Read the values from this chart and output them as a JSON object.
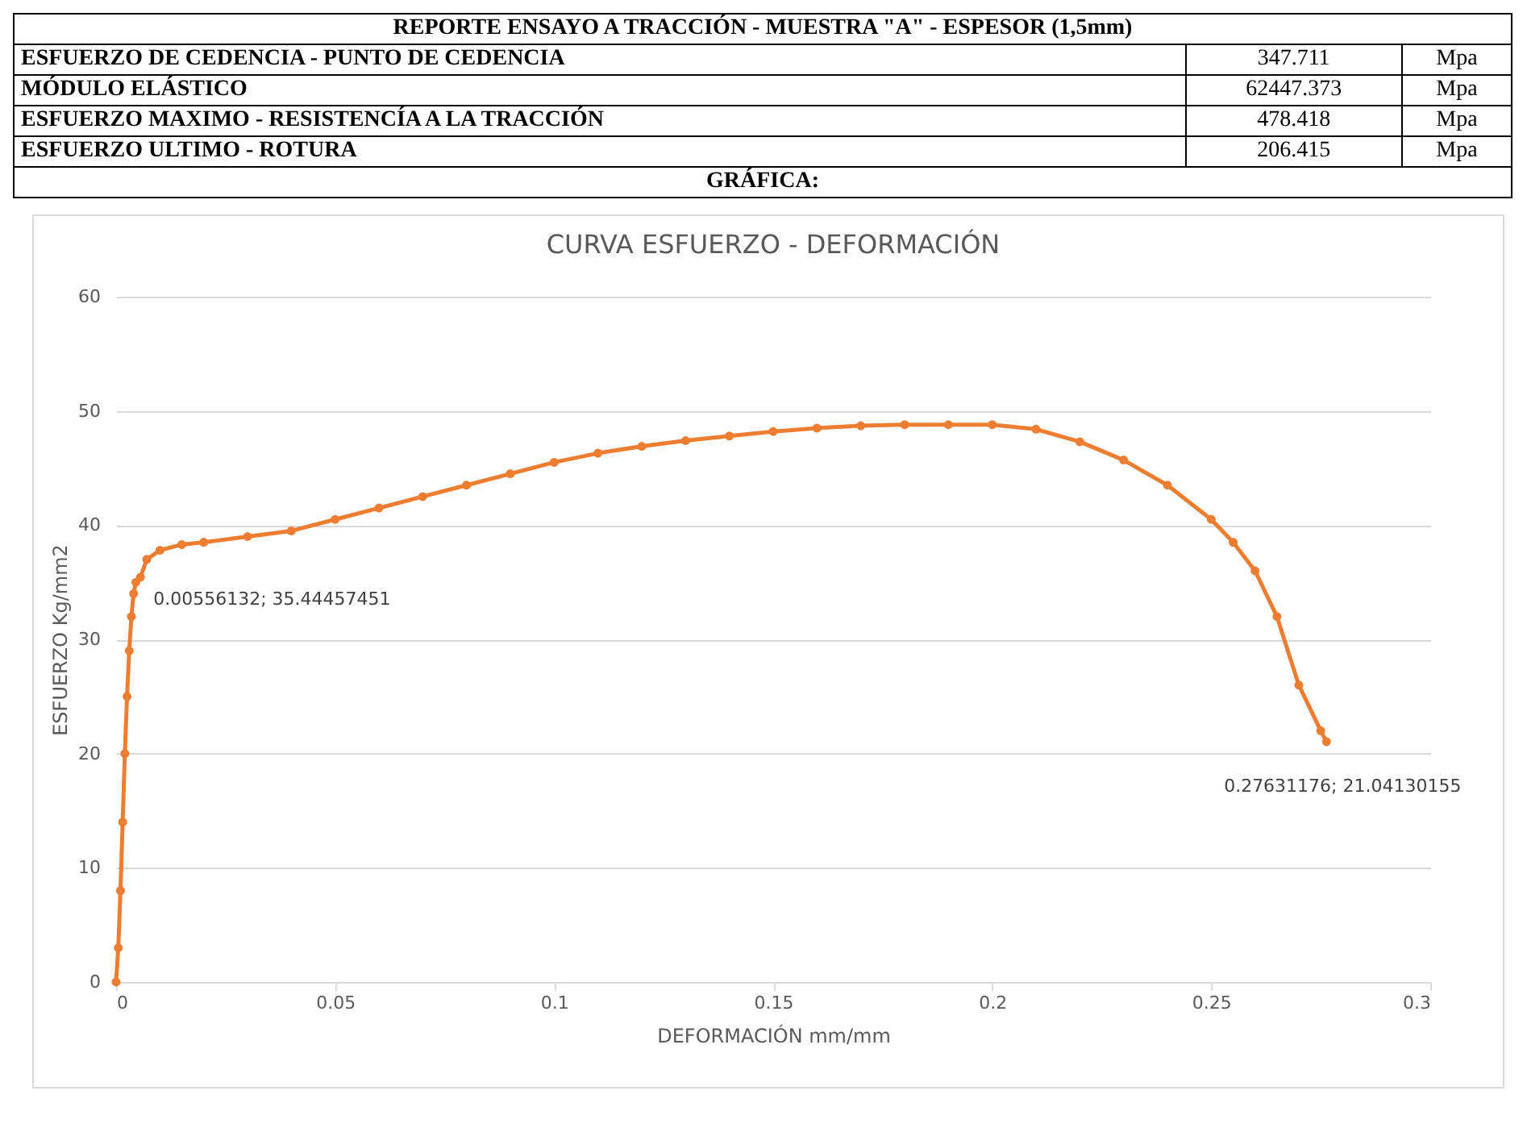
{
  "chart_data": [
    {
      "type": "other",
      "title": "REPORTE ENSAYO A TRACCIÓN - MUESTRA \"A\" - ESPESOR (1,5mm)",
      "categories": [
        "ESFUERZO DE CEDENCIA - PUNTO DE CEDENCIA",
        "MÓDULO ELÁSTICO",
        "ESFUERZO MAXIMO - RESISTENCÍA A LA TRACCIÓN",
        "ESFUERZO ULTIMO - ROTURA"
      ],
      "values": [
        347.711,
        62447.373,
        478.418,
        206.415
      ],
      "data_labels": true,
      "annotations": [
        "Mpa",
        "Mpa",
        "Mpa",
        "Mpa",
        "GRÁFICA:"
      ]
    },
    {
      "type": "line",
      "title": "CURVA ESFUERZO - DEFORMACIÓN",
      "xlabel": "DEFORMACIÓN mm/mm",
      "ylabel": "ESFUERZO Kg/mm2",
      "x": [
        0,
        0.0005,
        0.001,
        0.0015,
        0.002,
        0.0025,
        0.003,
        0.0035,
        0.004,
        0.0045,
        0.00556132,
        0.007,
        0.01,
        0.015,
        0.02,
        0.03,
        0.04,
        0.05,
        0.06,
        0.07,
        0.08,
        0.09,
        0.1,
        0.11,
        0.12,
        0.13,
        0.14,
        0.15,
        0.16,
        0.17,
        0.18,
        0.19,
        0.2,
        0.21,
        0.22,
        0.23,
        0.24,
        0.25,
        0.255,
        0.26,
        0.265,
        0.27,
        0.275,
        0.27631176
      ],
      "series": [
        {
          "color": "#ed7d31",
          "values": [
            0,
            3,
            8,
            14,
            20,
            25,
            29,
            32,
            34,
            35,
            35.44457451,
            37,
            37.8,
            38.3,
            38.5,
            39,
            39.5,
            40.5,
            41.5,
            42.5,
            43.5,
            44.5,
            45.5,
            46.3,
            46.9,
            47.4,
            47.8,
            48.2,
            48.5,
            48.7,
            48.8,
            48.8,
            48.8,
            48.4,
            47.3,
            45.7,
            43.5,
            40.5,
            38.5,
            36,
            32,
            26,
            22,
            21.04130155
          ]
        }
      ],
      "xlim": [
        0,
        0.3
      ],
      "xticks": [
        0,
        0.05,
        0.1,
        0.15,
        0.2,
        0.25,
        0.3
      ],
      "ylim": [
        0,
        60
      ],
      "yticks": [
        0,
        10,
        20,
        30,
        40,
        50,
        60
      ],
      "grid": "y",
      "marker": "circle",
      "line_style": "solid",
      "annotations": [
        {
          "text": "0.00556132; 35.44457451",
          "x": 0.00556132,
          "y": 35.44457451
        },
        {
          "text": "0.27631176; 21.04130155",
          "x": 0.27631176,
          "y": 21.04130155
        }
      ]
    }
  ]
}
